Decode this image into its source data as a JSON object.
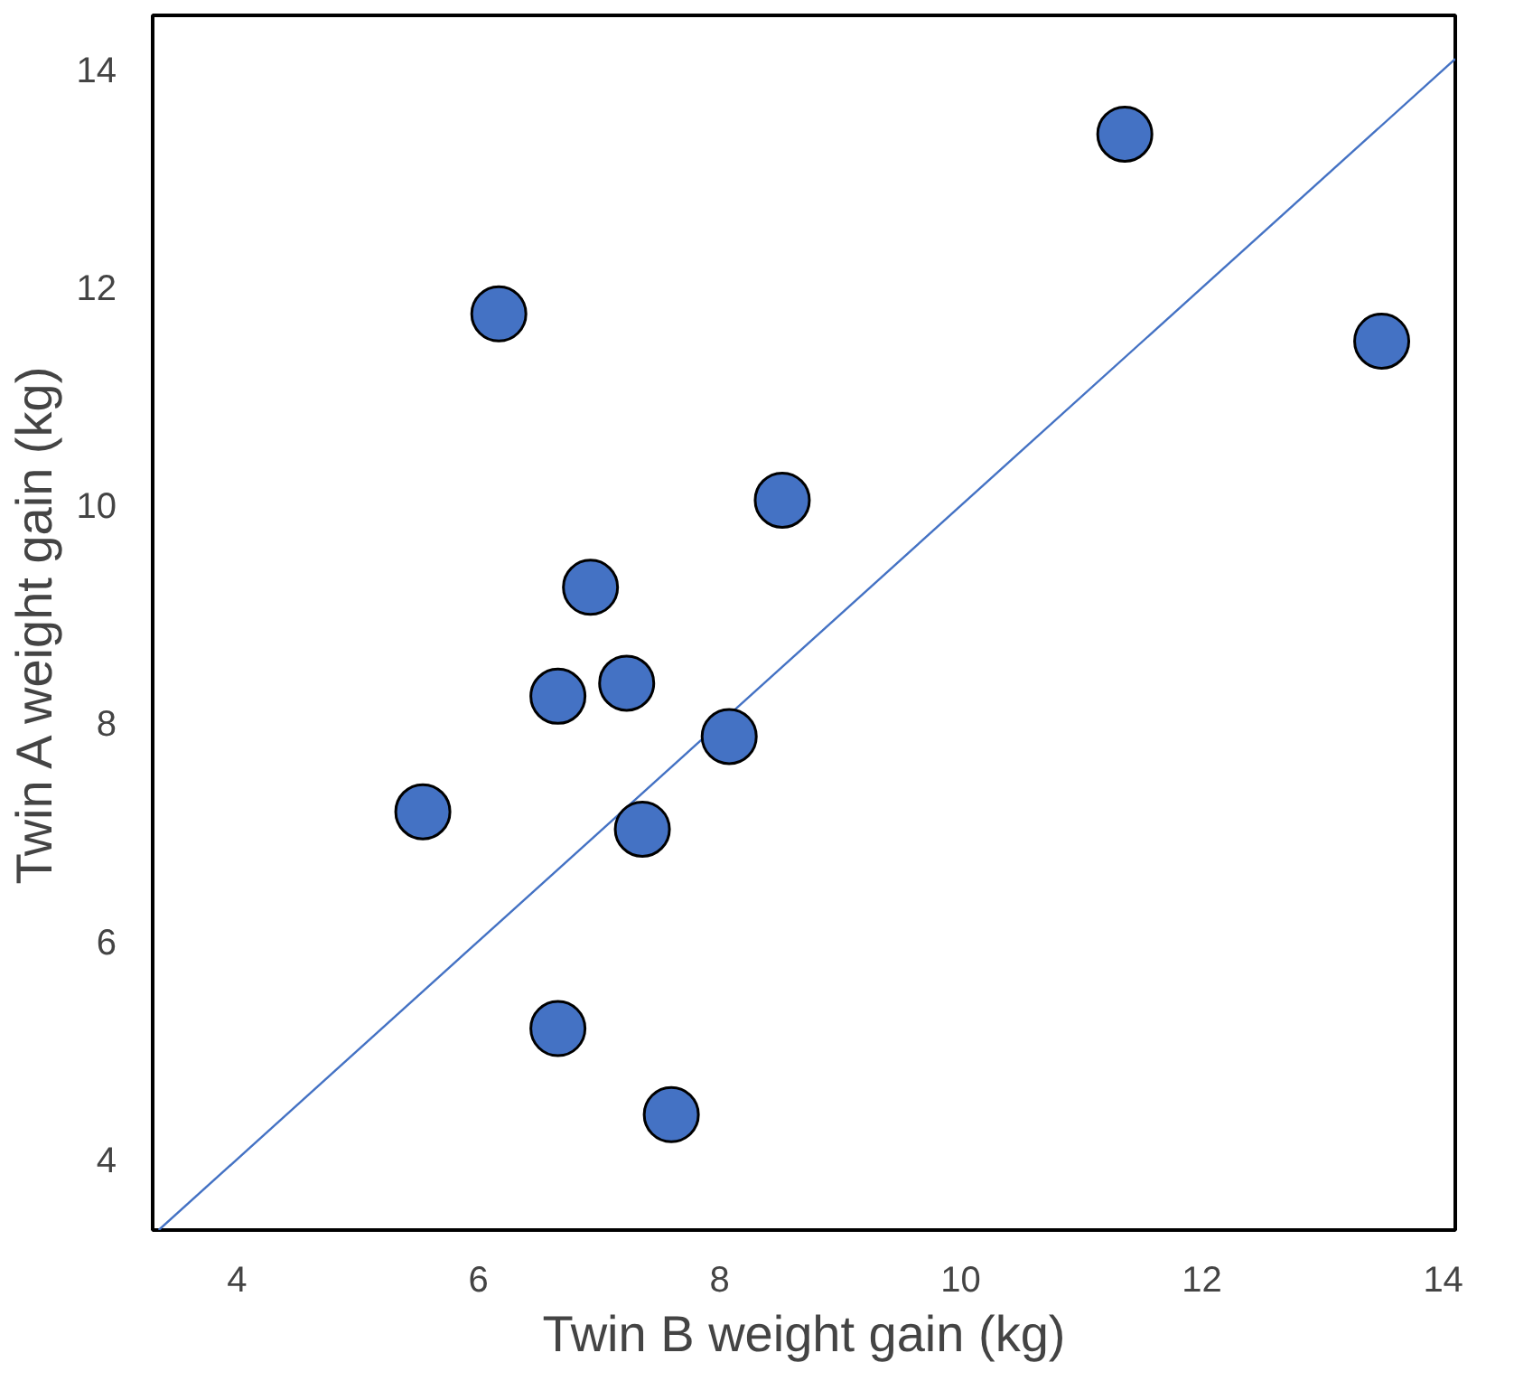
{
  "chart_data": {
    "type": "scatter",
    "xlabel": "Twin B weight gain (kg)",
    "ylabel": "Twin A weight gain (kg)",
    "xlim": [
      3.3,
      14.1
    ],
    "ylim": [
      3.35,
      14.5
    ],
    "xticks": [
      4,
      6,
      8,
      10,
      12,
      14
    ],
    "yticks": [
      4,
      6,
      8,
      10,
      12,
      14
    ],
    "grid": false,
    "series": [
      {
        "marker": "circle",
        "color": "#4472c4",
        "x": [
          11.36,
          13.49,
          6.17,
          8.52,
          6.93,
          7.23,
          6.66,
          8.08,
          5.54,
          7.36,
          6.66,
          7.6
        ],
        "values": [
          13.41,
          11.51,
          11.76,
          10.05,
          9.25,
          8.37,
          8.25,
          7.88,
          7.19,
          7.03,
          5.2,
          4.41
        ]
      },
      {
        "type": "line",
        "color": "#4472c4",
        "line_style": "solid",
        "x": [
          3.35,
          14.1
        ],
        "values": [
          3.35,
          14.1
        ]
      }
    ]
  }
}
